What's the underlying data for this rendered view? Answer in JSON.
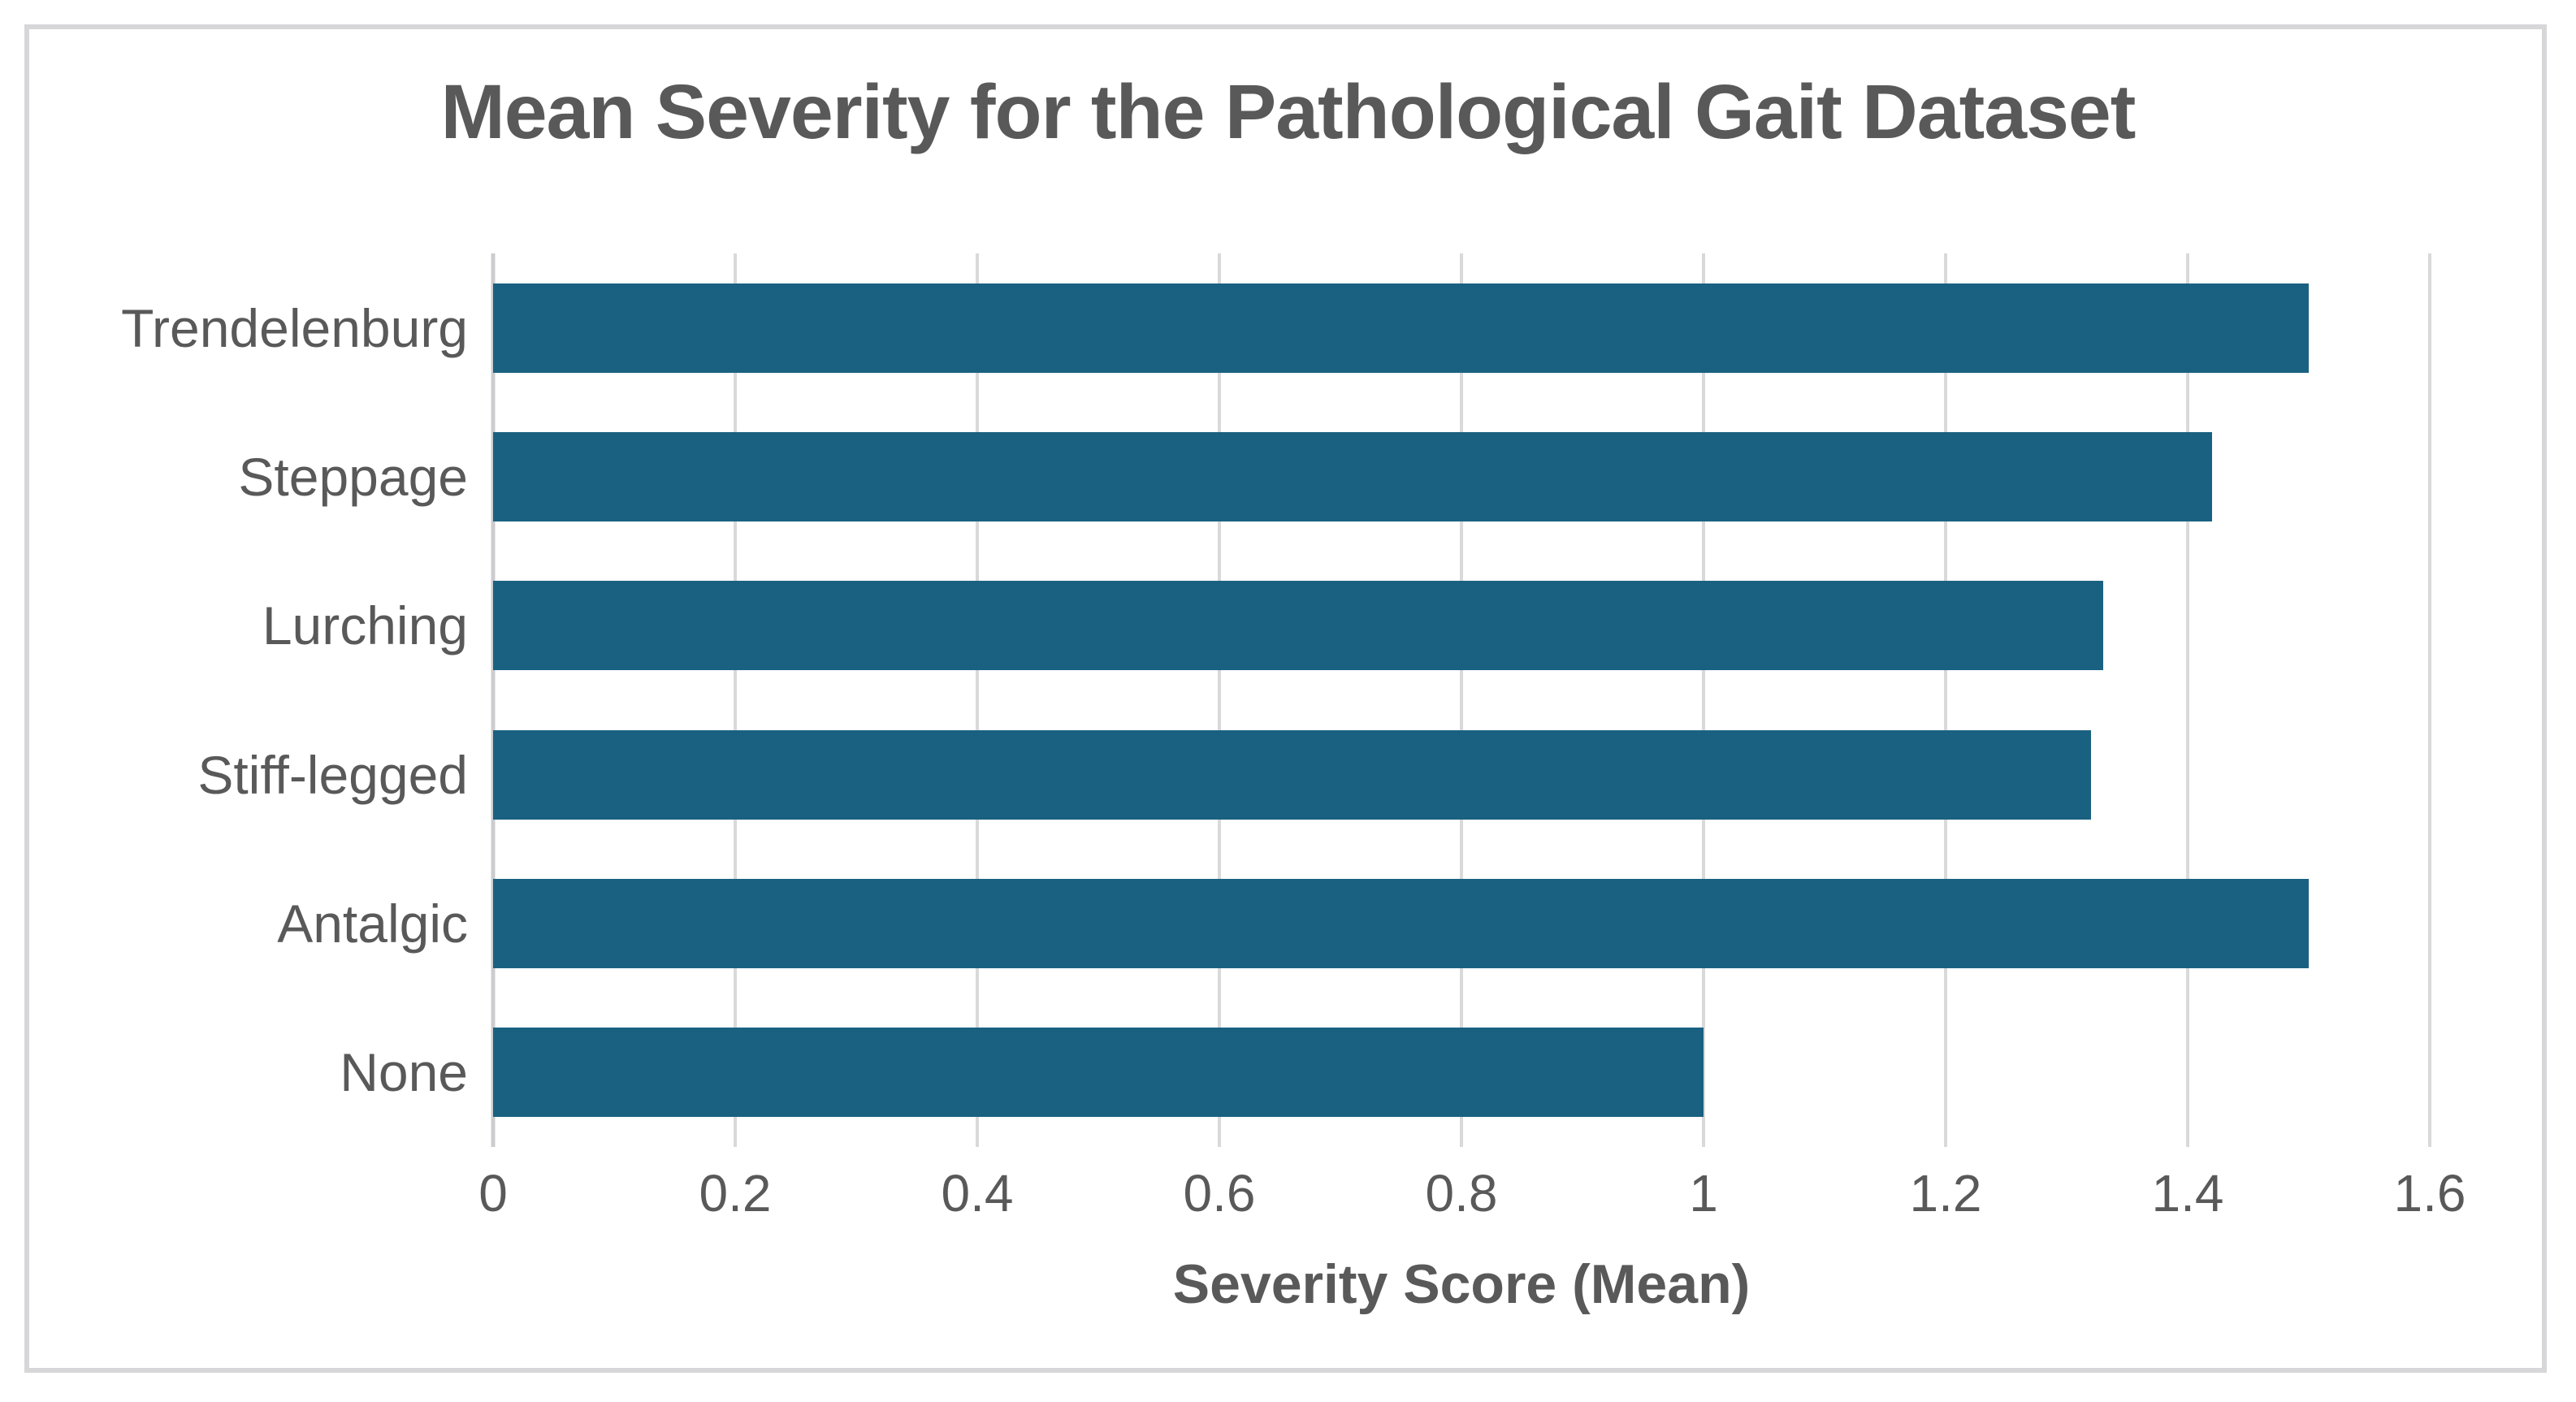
{
  "chart_data": {
    "type": "bar",
    "orientation": "horizontal",
    "title": "Mean Severity for the Pathological Gait Dataset",
    "categories_top_to_bottom": [
      "Trendelenburg",
      "Steppage",
      "Lurching",
      "Stiff-legged",
      "Antalgic",
      "None"
    ],
    "values": [
      1.5,
      1.42,
      1.33,
      1.32,
      1.5,
      1.0
    ],
    "xlabel": "Severity Score (Mean)",
    "ylabel": "",
    "xlim": [
      0,
      1.6
    ],
    "xticks": [
      0,
      0.2,
      0.4,
      0.6,
      0.8,
      1,
      1.2,
      1.4,
      1.6
    ],
    "xtick_labels": [
      "0",
      "0.2",
      "0.4",
      "0.6",
      "0.8",
      "1",
      "1.2",
      "1.4",
      "1.6"
    ],
    "grid": true,
    "legend_position": "none",
    "colors": {
      "bar": "#1a6181",
      "gridline": "#d9d9d9",
      "axis_line": "#cccccf",
      "text": "#595959",
      "frame_border": "#d7d7da",
      "background": "#ffffff"
    }
  }
}
